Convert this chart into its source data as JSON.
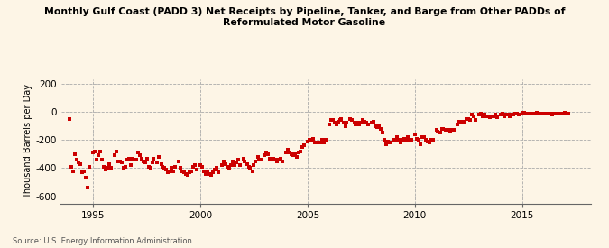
{
  "title": "Monthly Gulf Coast (PADD 3) Net Receipts by Pipeline, Tanker, and Barge from Other PADDs of\nReformulated Motor Gasoline",
  "ylabel": "Thousand Barrels per Day",
  "source": "Source: U.S. Energy Information Administration",
  "background_color": "#fdf5e6",
  "marker_color": "#cc0000",
  "ylim": [
    -650,
    230
  ],
  "yticks": [
    -600,
    -400,
    -200,
    0,
    200
  ],
  "xlim": [
    1993.5,
    2018.2
  ],
  "xticks": [
    1995,
    2000,
    2005,
    2010,
    2015
  ],
  "scatter_x": [
    1993.92,
    1994.0,
    1994.08,
    1994.17,
    1994.25,
    1994.33,
    1994.42,
    1994.5,
    1994.58,
    1994.67,
    1994.75,
    1994.83,
    1995.0,
    1995.08,
    1995.17,
    1995.25,
    1995.33,
    1995.42,
    1995.5,
    1995.58,
    1995.67,
    1995.75,
    1995.83,
    1996.0,
    1996.08,
    1996.17,
    1996.25,
    1996.33,
    1996.42,
    1996.5,
    1996.58,
    1996.67,
    1996.75,
    1996.83,
    1997.0,
    1997.08,
    1997.17,
    1997.25,
    1997.33,
    1997.42,
    1997.5,
    1997.58,
    1997.67,
    1997.75,
    1997.83,
    1998.0,
    1998.08,
    1998.17,
    1998.25,
    1998.33,
    1998.42,
    1998.5,
    1998.58,
    1998.67,
    1998.75,
    1998.83,
    1999.0,
    1999.08,
    1999.17,
    1999.25,
    1999.33,
    1999.42,
    1999.5,
    1999.58,
    1999.67,
    1999.75,
    1999.83,
    2000.0,
    2000.08,
    2000.17,
    2000.25,
    2000.33,
    2000.42,
    2000.5,
    2000.58,
    2000.67,
    2000.75,
    2000.83,
    2001.0,
    2001.08,
    2001.17,
    2001.25,
    2001.33,
    2001.42,
    2001.5,
    2001.58,
    2001.67,
    2001.75,
    2001.83,
    2002.0,
    2002.08,
    2002.17,
    2002.25,
    2002.33,
    2002.42,
    2002.5,
    2002.58,
    2002.67,
    2002.75,
    2002.83,
    2003.0,
    2003.08,
    2003.17,
    2003.25,
    2003.33,
    2003.42,
    2003.5,
    2003.58,
    2003.67,
    2003.75,
    2003.83,
    2004.0,
    2004.08,
    2004.17,
    2004.25,
    2004.33,
    2004.42,
    2004.5,
    2004.58,
    2004.67,
    2004.75,
    2004.83,
    2005.0,
    2005.08,
    2005.17,
    2005.25,
    2005.33,
    2005.42,
    2005.5,
    2005.58,
    2005.67,
    2005.75,
    2005.83,
    2006.0,
    2006.08,
    2006.17,
    2006.25,
    2006.33,
    2006.42,
    2006.5,
    2006.58,
    2006.67,
    2006.75,
    2006.83,
    2007.0,
    2007.08,
    2007.17,
    2007.25,
    2007.33,
    2007.42,
    2007.5,
    2007.58,
    2007.67,
    2007.75,
    2007.83,
    2008.0,
    2008.08,
    2008.17,
    2008.25,
    2008.33,
    2008.42,
    2008.5,
    2008.58,
    2008.67,
    2008.75,
    2008.83,
    2009.0,
    2009.08,
    2009.17,
    2009.25,
    2009.33,
    2009.42,
    2009.5,
    2009.58,
    2009.67,
    2009.75,
    2009.83,
    2010.0,
    2010.08,
    2010.17,
    2010.25,
    2010.33,
    2010.42,
    2010.5,
    2010.58,
    2010.67,
    2010.75,
    2010.83,
    2011.0,
    2011.08,
    2011.17,
    2011.25,
    2011.33,
    2011.42,
    2011.5,
    2011.58,
    2011.67,
    2011.75,
    2011.83,
    2012.0,
    2012.08,
    2012.17,
    2012.25,
    2012.33,
    2012.42,
    2012.5,
    2012.58,
    2012.67,
    2012.75,
    2012.83,
    2013.0,
    2013.08,
    2013.17,
    2013.25,
    2013.33,
    2013.42,
    2013.5,
    2013.58,
    2013.67,
    2013.75,
    2013.83,
    2014.0,
    2014.08,
    2014.17,
    2014.25,
    2014.33,
    2014.42,
    2014.5,
    2014.58,
    2014.67,
    2014.75,
    2014.83,
    2015.0,
    2015.08,
    2015.17,
    2015.25,
    2015.33,
    2015.42,
    2015.5,
    2015.58,
    2015.67,
    2015.75,
    2015.83,
    2016.0,
    2016.08,
    2016.17,
    2016.25,
    2016.33,
    2016.42,
    2016.5,
    2016.58,
    2016.67,
    2016.75,
    2016.83,
    2017.0,
    2017.08,
    2017.17
  ],
  "scatter_y": [
    -50,
    -390,
    -420,
    -300,
    -340,
    -360,
    -370,
    -430,
    -420,
    -470,
    -540,
    -390,
    -290,
    -280,
    -340,
    -310,
    -280,
    -340,
    -390,
    -410,
    -400,
    -370,
    -400,
    -310,
    -280,
    -350,
    -350,
    -360,
    -400,
    -390,
    -340,
    -330,
    -380,
    -330,
    -340,
    -290,
    -310,
    -330,
    -350,
    -360,
    -330,
    -390,
    -400,
    -360,
    -330,
    -360,
    -320,
    -370,
    -390,
    -400,
    -410,
    -430,
    -420,
    -400,
    -420,
    -390,
    -350,
    -400,
    -420,
    -430,
    -440,
    -450,
    -430,
    -420,
    -390,
    -380,
    -410,
    -380,
    -390,
    -420,
    -440,
    -430,
    -440,
    -450,
    -430,
    -410,
    -400,
    -430,
    -380,
    -350,
    -370,
    -390,
    -400,
    -380,
    -350,
    -380,
    -360,
    -340,
    -380,
    -330,
    -350,
    -370,
    -390,
    -400,
    -420,
    -380,
    -350,
    -320,
    -340,
    -340,
    -310,
    -290,
    -300,
    -330,
    -330,
    -330,
    -340,
    -350,
    -340,
    -330,
    -350,
    -290,
    -270,
    -290,
    -300,
    -310,
    -300,
    -320,
    -290,
    -280,
    -250,
    -240,
    -210,
    -200,
    -200,
    -195,
    -215,
    -215,
    -215,
    -215,
    -200,
    -220,
    -200,
    -90,
    -60,
    -60,
    -80,
    -90,
    -70,
    -60,
    -50,
    -80,
    -100,
    -80,
    -50,
    -60,
    -80,
    -90,
    -80,
    -90,
    -80,
    -60,
    -70,
    -80,
    -90,
    -80,
    -70,
    -100,
    -110,
    -100,
    -120,
    -150,
    -200,
    -230,
    -210,
    -220,
    -200,
    -200,
    -180,
    -200,
    -220,
    -200,
    -190,
    -200,
    -180,
    -200,
    -200,
    -160,
    -190,
    -200,
    -230,
    -180,
    -180,
    -200,
    -210,
    -220,
    -200,
    -200,
    -130,
    -140,
    -150,
    -120,
    -120,
    -130,
    -130,
    -130,
    -140,
    -130,
    -130,
    -90,
    -70,
    -70,
    -80,
    -70,
    -50,
    -50,
    -60,
    -20,
    -30,
    -60,
    -20,
    -10,
    -30,
    -20,
    -30,
    -30,
    -40,
    -30,
    -30,
    -20,
    -40,
    -20,
    -10,
    -30,
    -20,
    -20,
    -30,
    -20,
    -20,
    -10,
    -10,
    -20,
    -5,
    -5,
    -10,
    -10,
    -15,
    -10,
    -15,
    -10,
    -5,
    -10,
    -15,
    -10,
    -10,
    -15,
    -10,
    -10,
    -20,
    -15,
    -10,
    -10,
    -10,
    -10,
    -5,
    -10,
    -10
  ]
}
